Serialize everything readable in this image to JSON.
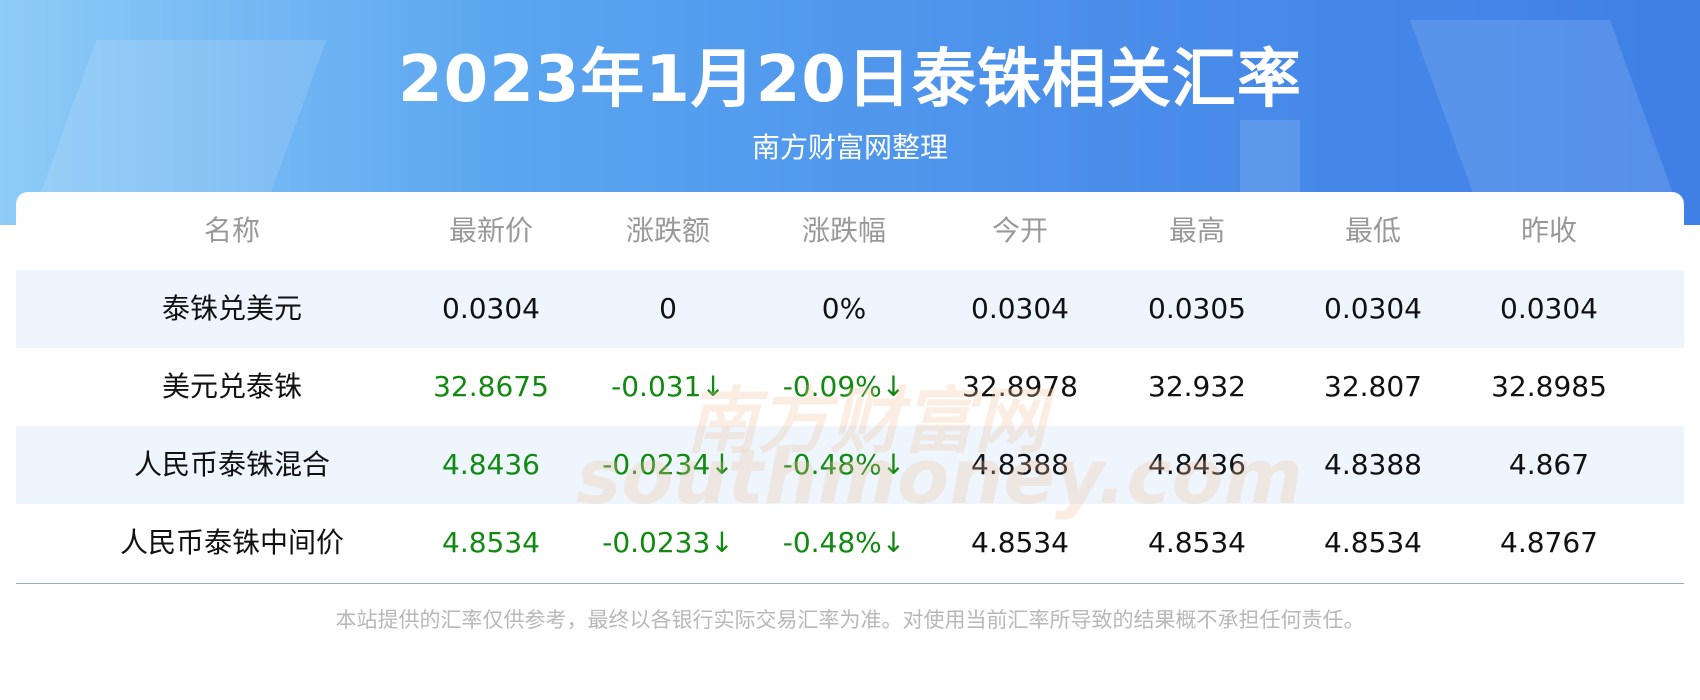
{
  "header": {
    "title": "2023年1月20日泰铢相关汇率",
    "subtitle": "南方财富网整理"
  },
  "table": {
    "columns": [
      "名称",
      "最新价",
      "涨跌额",
      "涨跌幅",
      "今开",
      "最高",
      "最低",
      "昨收"
    ],
    "rows": [
      [
        "泰铢兑美元",
        "0.0304",
        "0",
        "0%",
        "0.0304",
        "0.0305",
        "0.0304",
        "0.0304"
      ],
      [
        "美元兑泰铢",
        "32.8675",
        "-0.031↓",
        "-0.09%↓",
        "32.8978",
        "32.932",
        "32.807",
        "32.8985"
      ],
      [
        "人民币泰铢混合",
        "4.8436",
        "-0.0234↓",
        "-0.48%↓",
        "4.8388",
        "4.8436",
        "4.8388",
        "4.867"
      ],
      [
        "人民币泰铢中间价",
        "4.8534",
        "-0.0233↓",
        "-0.48%↓",
        "4.8534",
        "4.8534",
        "4.8534",
        "4.8767"
      ]
    ]
  },
  "watermark": {
    "cn": "南方财富网",
    "en": "southmoney.com"
  },
  "footer": {
    "note": "本站提供的汇率仅供参考，最终以各银行实际交易汇率为准。对使用当前汇率所导致的结果概不承担任何责任。"
  }
}
